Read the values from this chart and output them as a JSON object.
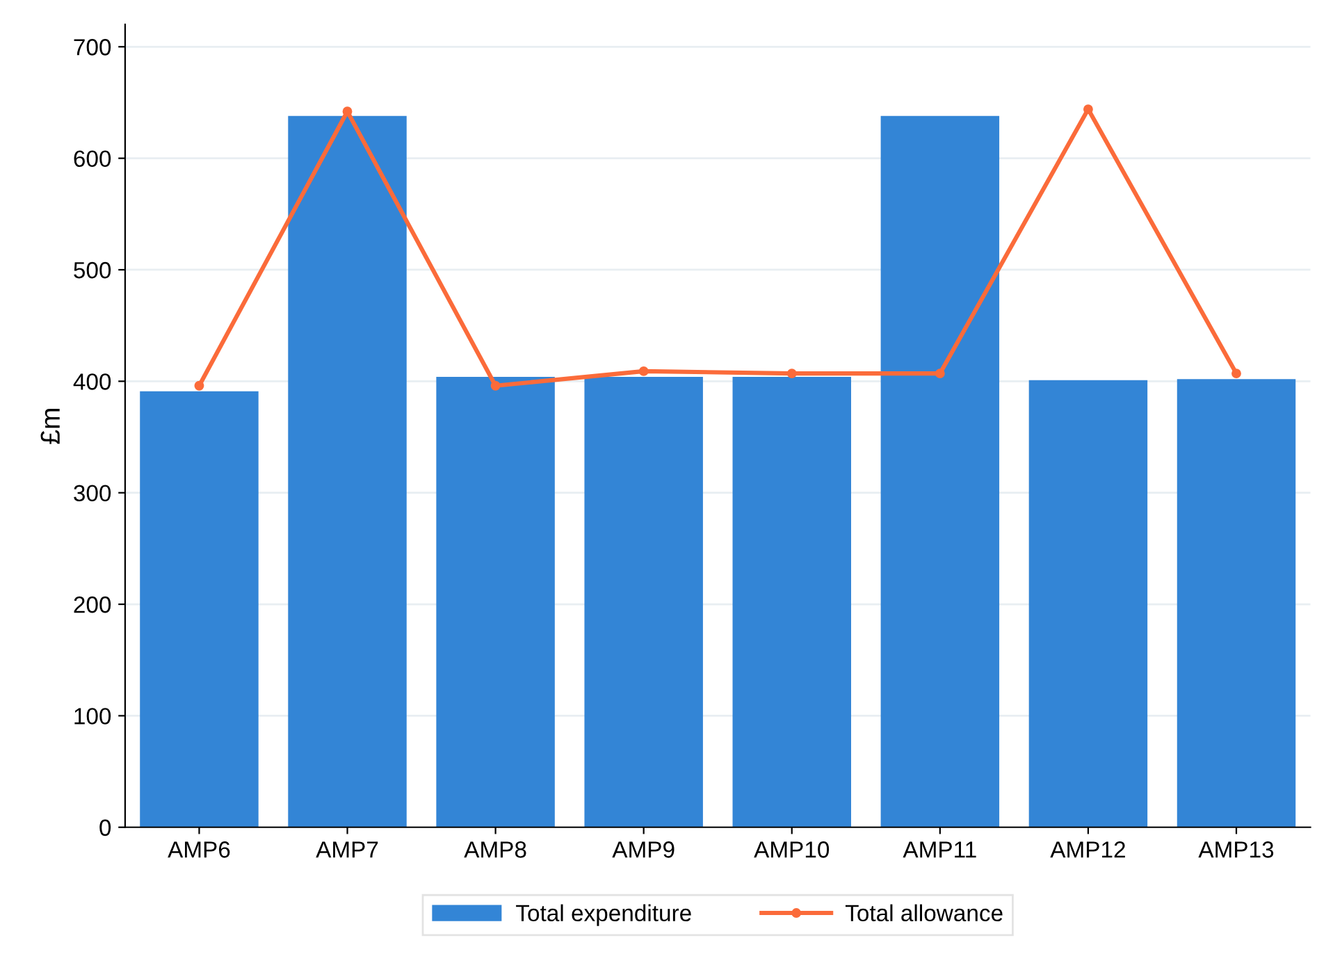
{
  "chart_data": {
    "type": "bar",
    "ylabel": "£m",
    "categories": [
      "AMP6",
      "AMP7",
      "AMP8",
      "AMP9",
      "AMP10",
      "AMP11",
      "AMP12",
      "AMP13"
    ],
    "series": [
      {
        "name": "Total expenditure",
        "color": "#3385d6",
        "values": [
          391,
          638,
          404,
          404,
          404,
          638,
          401,
          402
        ]
      },
      {
        "name": "Total allowance",
        "type": "line",
        "color": "#fb6b3a",
        "marker": "circle",
        "values": [
          396,
          642,
          396,
          409,
          407,
          407,
          644,
          407
        ]
      }
    ],
    "ylim": [
      0,
      720
    ],
    "yticks": [
      0,
      100,
      200,
      300,
      400,
      500,
      600,
      700
    ],
    "grid": "y",
    "legend": "bottom"
  }
}
